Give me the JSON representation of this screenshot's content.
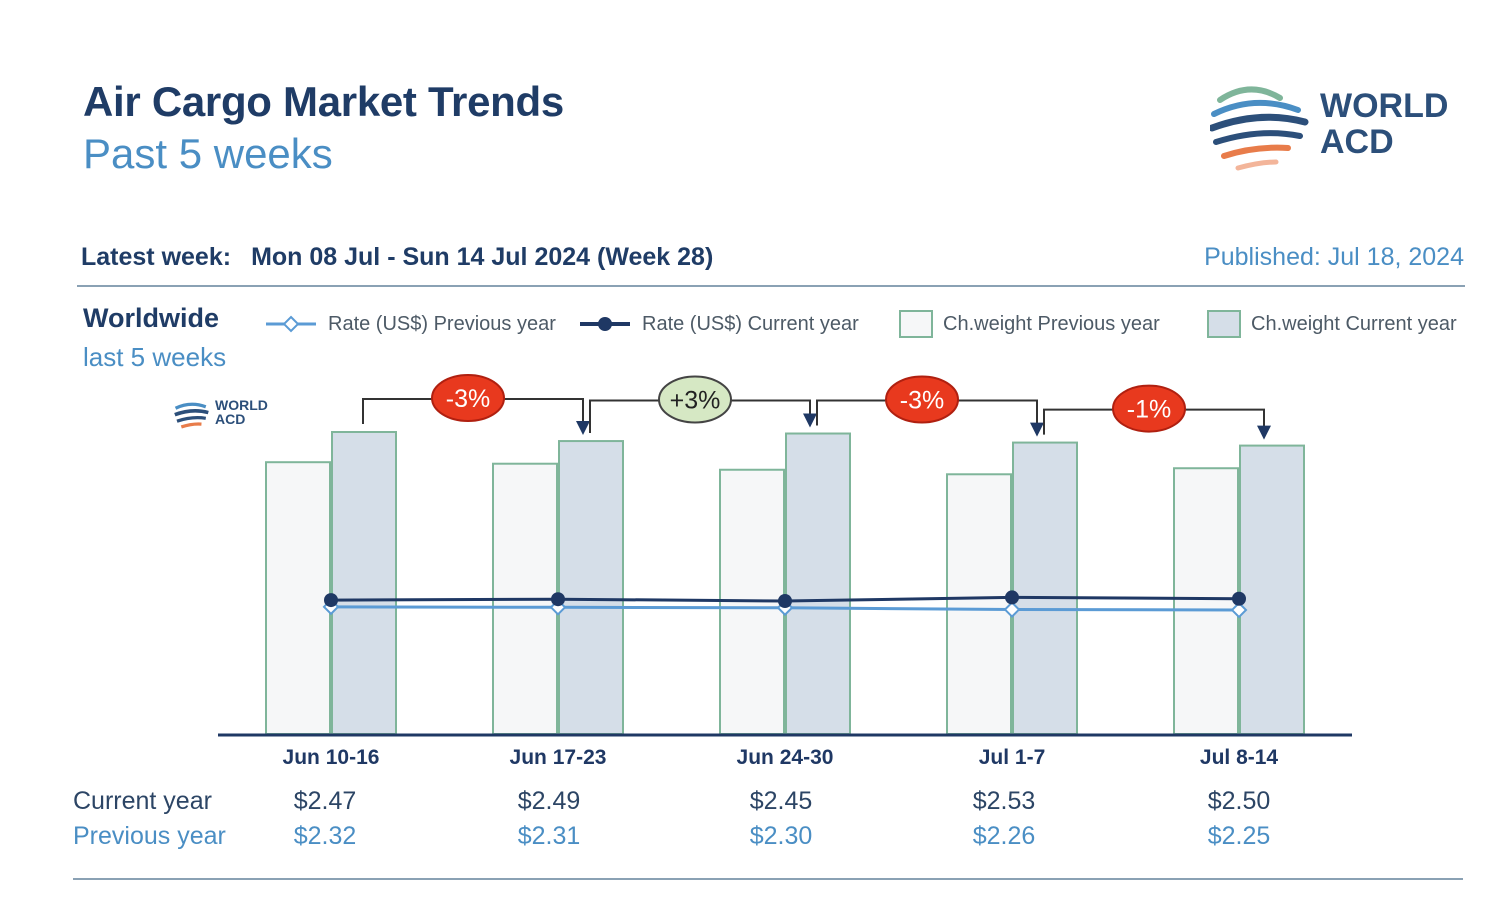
{
  "header": {
    "title": "Air Cargo Market Trends",
    "subtitle": "Past 5 weeks",
    "latest_label": "Latest week:",
    "latest_value": "Mon 08 Jul - Sun 14 Jul 2024 (Week 28)",
    "published": "Published: Jul 18, 2024"
  },
  "logo": {
    "line1": "WORLD",
    "line2": "ACD"
  },
  "region": {
    "title": "Worldwide",
    "subtitle": "last 5 weeks"
  },
  "legend": {
    "rate_prev": "Rate (US$) Previous year",
    "rate_cur": "Rate (US$) Current year",
    "cw_prev": "Ch.weight Previous year",
    "cw_cur": "Ch.weight Current year"
  },
  "colors": {
    "rate_prev": "#5b9bd5",
    "rate_cur": "#1f3864",
    "bar_prev_fill": "#f6f7f8",
    "bar_cur_fill": "#d5dee8",
    "bar_border": "#7fb59a",
    "neg_badge": "#e8391e",
    "pos_badge": "#d6e8c4"
  },
  "chart_data": {
    "type": "bar",
    "categories": [
      "Jun 10-16",
      "Jun 17-23",
      "Jun 24-30",
      "Jul 1-7",
      "Jul 8-14"
    ],
    "series": [
      {
        "name": "Ch.weight Previous year",
        "kind": "bar",
        "values": [
          0.9,
          0.895,
          0.875,
          0.86,
          0.88
        ]
      },
      {
        "name": "Ch.weight Current year",
        "kind": "bar",
        "values": [
          1.0,
          0.97,
          0.995,
          0.965,
          0.955
        ]
      },
      {
        "name": "Rate (US$) Previous year",
        "kind": "line",
        "values": [
          2.32,
          2.31,
          2.3,
          2.26,
          2.25
        ]
      },
      {
        "name": "Rate (US$) Current year",
        "kind": "line",
        "values": [
          2.47,
          2.49,
          2.45,
          2.53,
          2.5
        ]
      }
    ],
    "weekly_changes": [
      "-3%",
      "+3%",
      "-3%",
      "-1%"
    ],
    "rate_labels_current": [
      "$2.47",
      "$2.49",
      "$2.45",
      "$2.53",
      "$2.50"
    ],
    "rate_labels_previous": [
      "$2.32",
      "$2.31",
      "$2.30",
      "$2.26",
      "$2.25"
    ],
    "table_row_labels": [
      "Current year",
      "Previous year"
    ]
  }
}
